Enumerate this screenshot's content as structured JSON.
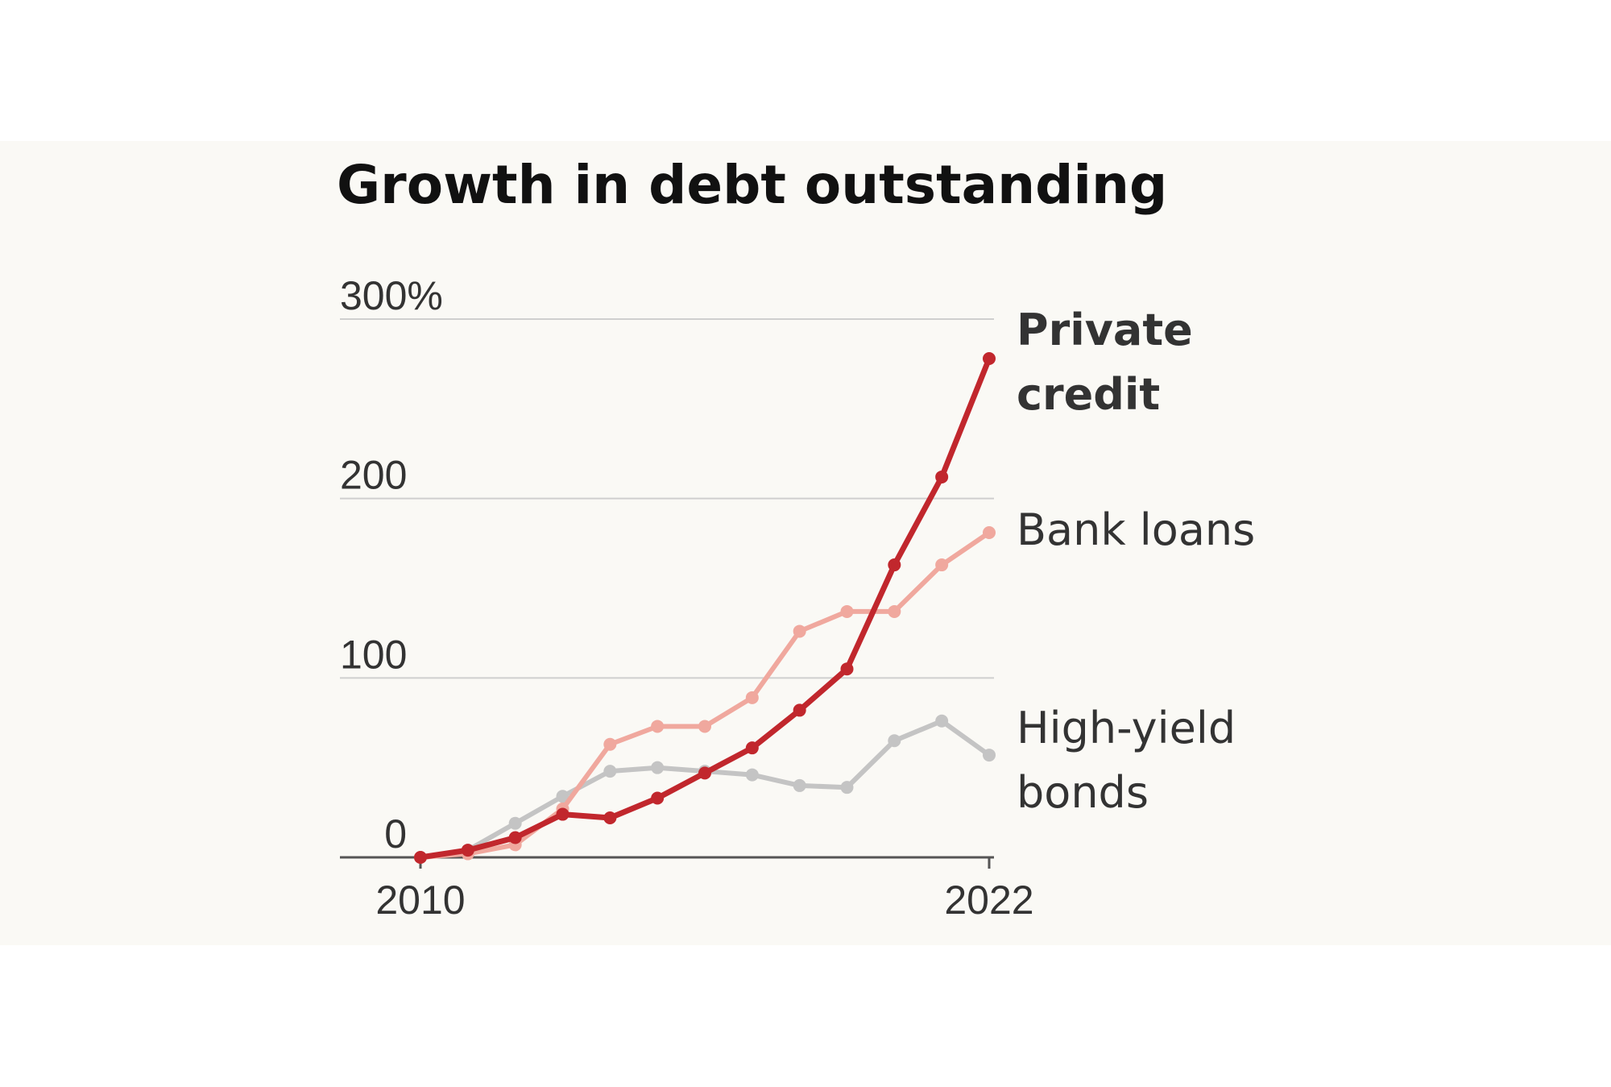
{
  "chart_data": {
    "type": "line",
    "title": "Growth in debt outstanding",
    "xlabel": "",
    "ylabel": "",
    "x": [
      2010,
      2011,
      2012,
      2013,
      2014,
      2015,
      2016,
      2017,
      2018,
      2019,
      2020,
      2021,
      2022
    ],
    "xlim": [
      2010,
      2022
    ],
    "ylim": [
      0,
      300
    ],
    "x_ticks": [
      "2010",
      "2022"
    ],
    "y_ticks": [
      "300%",
      "200",
      "100",
      "0"
    ],
    "y_tick_values": [
      300,
      200,
      100,
      0
    ],
    "grid": true,
    "legend": "direct labels at right end of lines",
    "series": [
      {
        "name": "High-yield bonds",
        "label_lines": [
          "High-yield",
          "bonds"
        ],
        "color": "#c4c4c4",
        "values": [
          0,
          4,
          19,
          34,
          48,
          50,
          48,
          46,
          40,
          39,
          65,
          76,
          57
        ]
      },
      {
        "name": "Bank loans",
        "label_lines": [
          "Bank loans"
        ],
        "color": "#f0a89e",
        "values": [
          0,
          2,
          7,
          27,
          63,
          73,
          73,
          89,
          126,
          137,
          137,
          163,
          181
        ]
      },
      {
        "name": "Private credit",
        "label_lines": [
          "Private",
          "credit"
        ],
        "color": "#c1272d",
        "values": [
          0,
          4,
          11,
          24,
          22,
          33,
          47,
          61,
          82,
          105,
          163,
          212,
          278
        ]
      }
    ]
  }
}
